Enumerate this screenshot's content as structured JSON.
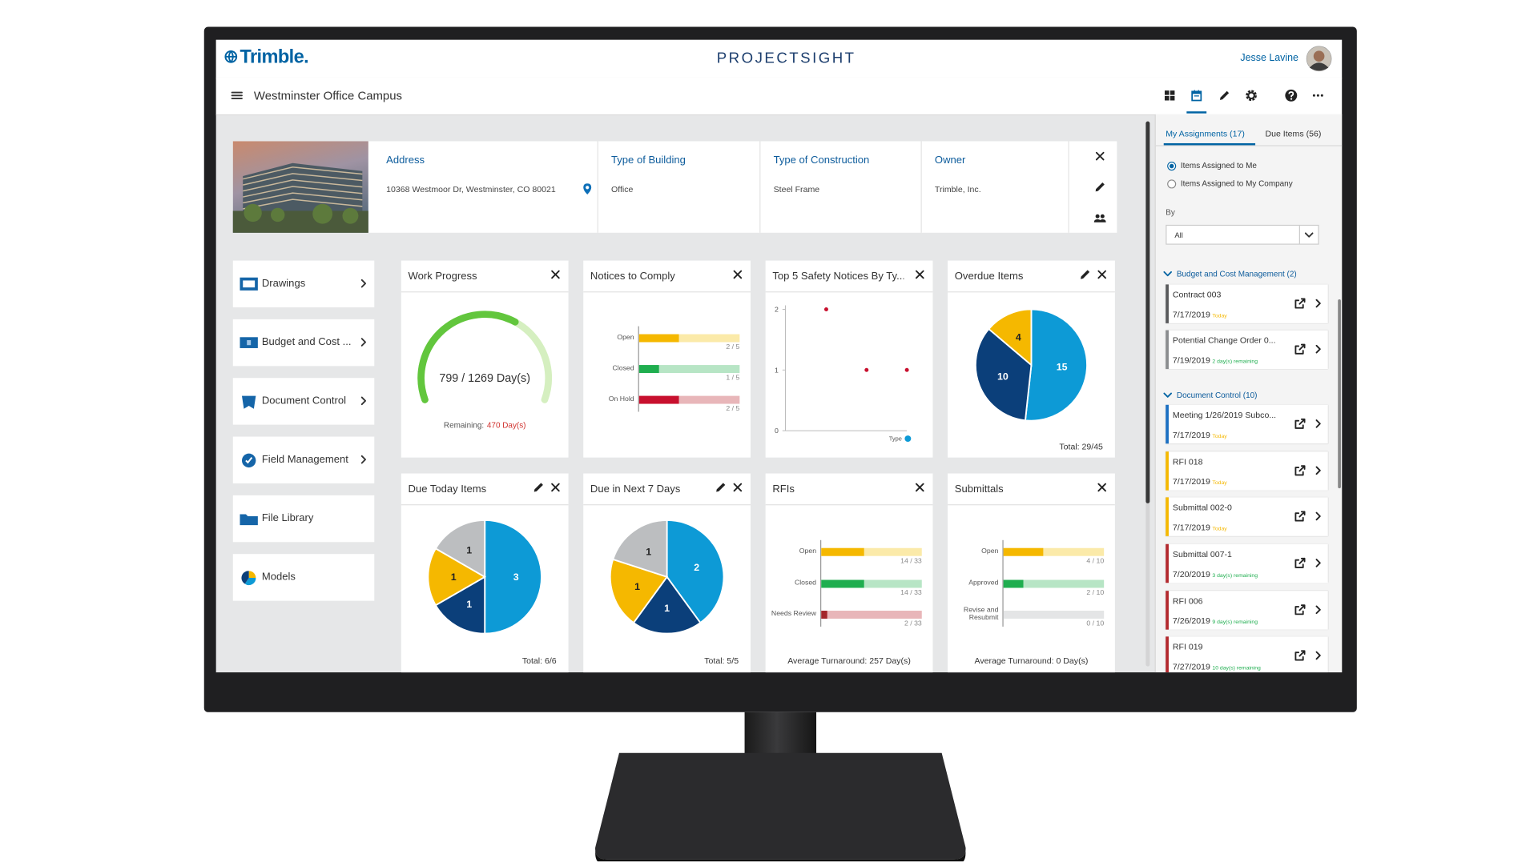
{
  "header": {
    "logo": "Trimble.",
    "app": "PROJECTSIGHT",
    "user": "Jesse Lavine"
  },
  "project": {
    "name": "Westminster Office Campus",
    "fields": [
      {
        "label": "Address",
        "value": "10368 Westmoor Dr, Westminster, CO 80021"
      },
      {
        "label": "Type of Building",
        "value": "Office"
      },
      {
        "label": "Type of Construction",
        "value": "Steel Frame"
      },
      {
        "label": "Owner",
        "value": "Trimble, Inc."
      }
    ]
  },
  "nav": [
    "Drawings",
    "Budget and Cost ...",
    "Document Control",
    "Field Management",
    "File Library",
    "Models"
  ],
  "widgets": [
    {
      "type": "gauge",
      "title": "Work Progress",
      "value": 799,
      "total": 1269,
      "label": "799 / 1269 Day(s)",
      "remaining_label": "Remaining:",
      "remaining_value": "470 Day(s)",
      "color": "#62c63d",
      "track": "#d5efc0"
    },
    {
      "type": "bars",
      "title": "Notices to Comply",
      "rows": [
        {
          "label": "Open",
          "value": 2,
          "total": 5,
          "value_label": "2 / 5",
          "color": "#f5b800",
          "track": "#fbeaa9"
        },
        {
          "label": "Closed",
          "value": 1,
          "total": 5,
          "value_label": "1 / 5",
          "color": "#1fae4f",
          "track": "#b7e5c5"
        },
        {
          "label": "On Hold",
          "value": 2,
          "total": 5,
          "value_label": "2 / 5",
          "color": "#c8102e",
          "track": "#e8b6b9"
        }
      ]
    },
    {
      "type": "scatter",
      "title": "Top 5 Safety Notices By Ty...",
      "ylim": [
        0,
        2
      ],
      "yticks": [
        0,
        1,
        2
      ],
      "values": [
        2,
        1,
        1
      ],
      "x_label": "Type",
      "color": "#c8102e"
    },
    {
      "type": "pie",
      "title": "Overdue Items",
      "edit": true,
      "values": [
        15,
        10,
        4
      ],
      "colors": [
        "#0d9ad6",
        "#0b3f7a",
        "#f5b800"
      ],
      "total_label": "Total: 29/45"
    },
    {
      "type": "pie",
      "title": "Due Today Items",
      "edit": true,
      "values": [
        3,
        1,
        1,
        1
      ],
      "colors": [
        "#0d9ad6",
        "#0b3f7a",
        "#f5b800",
        "#bcbec0"
      ],
      "total_label": "Total: 6/6"
    },
    {
      "type": "pie",
      "title": "Due in Next 7 Days",
      "edit": true,
      "values": [
        2,
        1,
        1,
        1
      ],
      "colors": [
        "#0d9ad6",
        "#0b3f7a",
        "#f5b800",
        "#bcbec0"
      ],
      "total_label": "Total: 5/5"
    },
    {
      "type": "bars",
      "title": "RFIs",
      "rows": [
        {
          "label": "Open",
          "value": 14,
          "total": 33,
          "value_label": "14 / 33",
          "color": "#f5b800",
          "track": "#fbeaa9"
        },
        {
          "label": "Closed",
          "value": 14,
          "total": 33,
          "value_label": "14 / 33",
          "color": "#1fae4f",
          "track": "#b7e5c5"
        },
        {
          "label": "Needs Review",
          "value": 2,
          "total": 33,
          "value_label": "2 / 33",
          "color": "#a3262b",
          "track": "#e8b6b9"
        }
      ],
      "footer": "Average Turnaround: 257 Day(s)"
    },
    {
      "type": "bars",
      "title": "Submittals",
      "rows": [
        {
          "label": "Open",
          "value": 4,
          "total": 10,
          "value_label": "4 / 10",
          "color": "#f5b800",
          "track": "#fbeaa9"
        },
        {
          "label": "Approved",
          "value": 2,
          "total": 10,
          "value_label": "2 / 10",
          "color": "#1fae4f",
          "track": "#b7e5c5"
        },
        {
          "label": "Revise and Resubmit",
          "value": 0,
          "total": 10,
          "value_label": "0 / 10",
          "color": "#a3262b",
          "track": "#e4e5e6"
        }
      ],
      "footer": "Average Turnaround: 0 Day(s)"
    }
  ],
  "sidebar": {
    "tabs": [
      "My Assignments (17)",
      "Due Items (56)"
    ],
    "options": [
      "Items Assigned to Me",
      "Items Assigned to My Company"
    ],
    "by_label": "By",
    "by_value": "All",
    "groups": [
      {
        "title": "Budget and Cost Management (2)",
        "items": [
          {
            "name": "Contract 003",
            "date": "7/17/2019",
            "status": "Today",
            "color": "#58595b",
            "status_color": "#f5b800"
          },
          {
            "name": "Potential Change Order 0...",
            "date": "7/19/2019",
            "status": "2 day(s) remaining",
            "color": "#8a8c8e",
            "status_color": "#1fae4f"
          }
        ]
      },
      {
        "title": "Document Control (10)",
        "items": [
          {
            "name": "Meeting 1/26/2019 Subco...",
            "date": "7/17/2019",
            "status": "Today",
            "color": "#1b6fc2",
            "status_color": "#f5b800"
          },
          {
            "name": "RFI 018",
            "date": "7/17/2019",
            "status": "Today",
            "color": "#f5b800",
            "status_color": "#f5b800"
          },
          {
            "name": "Submittal 002-0",
            "date": "7/17/2019",
            "status": "Today",
            "color": "#f5b800",
            "status_color": "#f5b800"
          },
          {
            "name": "Submittal 007-1",
            "date": "7/20/2019",
            "status": "3 day(s) remaining",
            "color": "#b3282d",
            "status_color": "#1fae4f"
          },
          {
            "name": "RFI 006",
            "date": "7/26/2019",
            "status": "9 day(s) remaining",
            "color": "#b3282d",
            "status_color": "#1fae4f"
          },
          {
            "name": "RFI 019",
            "date": "7/27/2019",
            "status": "10 day(s) remaining",
            "color": "#b3282d",
            "status_color": "#1fae4f"
          }
        ]
      }
    ]
  }
}
